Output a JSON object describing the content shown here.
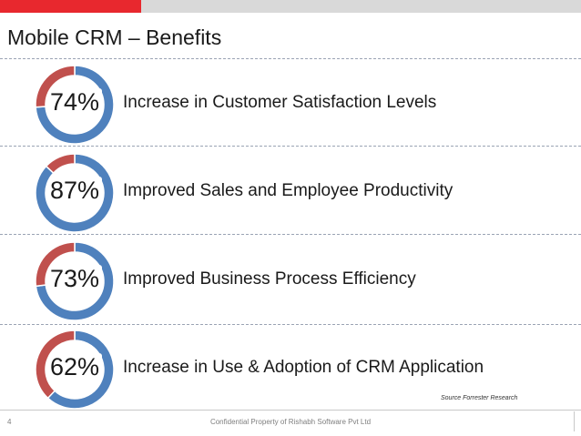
{
  "title": "Mobile CRM – Benefits",
  "colors": {
    "accent_red": "#e8282e",
    "bar_gray": "#d9d9d9",
    "donut_blue": "#4f81bd",
    "donut_red": "#c0504d"
  },
  "chart_data": [
    {
      "type": "pie",
      "values": [
        74,
        26
      ],
      "center_label": "74%",
      "label": "Increase in Customer Satisfaction Levels"
    },
    {
      "type": "pie",
      "values": [
        87,
        13
      ],
      "center_label": "87%",
      "label": "Improved Sales and Employee Productivity"
    },
    {
      "type": "pie",
      "values": [
        73,
        27
      ],
      "center_label": "73%",
      "label": "Improved Business Process Efficiency"
    },
    {
      "type": "pie",
      "values": [
        62,
        38
      ],
      "center_label": "62%",
      "label": "Increase in Use & Adoption of CRM Application"
    }
  ],
  "source": "Source Forrester Research",
  "footer": {
    "page_number": "4",
    "confidential": "Confidential Property of Rishabh Software Pvt Ltd"
  }
}
